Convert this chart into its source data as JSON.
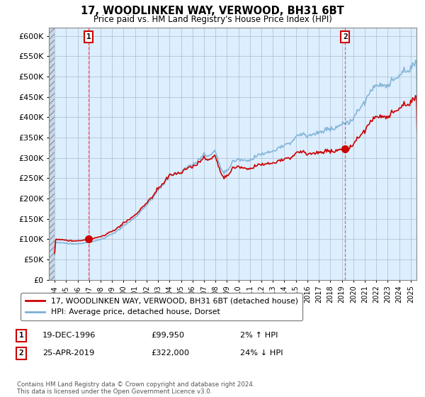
{
  "title": "17, WOODLINKEN WAY, VERWOOD, BH31 6BT",
  "subtitle": "Price paid vs. HM Land Registry's House Price Index (HPI)",
  "legend_line1": "17, WOODLINKEN WAY, VERWOOD, BH31 6BT (detached house)",
  "legend_line2": "HPI: Average price, detached house, Dorset",
  "footnote": "Contains HM Land Registry data © Crown copyright and database right 2024.\nThis data is licensed under the Open Government Licence v3.0.",
  "sale1_year": 1996.958,
  "sale1_price": 99950,
  "sale2_year": 2019.292,
  "sale2_price": 322000,
  "line_color": "#cc0000",
  "hpi_color": "#7ab0d4",
  "marker_color": "#cc0000",
  "ylim_min": 0,
  "ylim_max": 620000,
  "ytick_step": 50000,
  "xlim_min": 1993.5,
  "xlim_max": 2025.5,
  "chart_bg": "#ddeeff",
  "hatch_color": "#b8c8d8",
  "grid_color": "#aabbcc"
}
